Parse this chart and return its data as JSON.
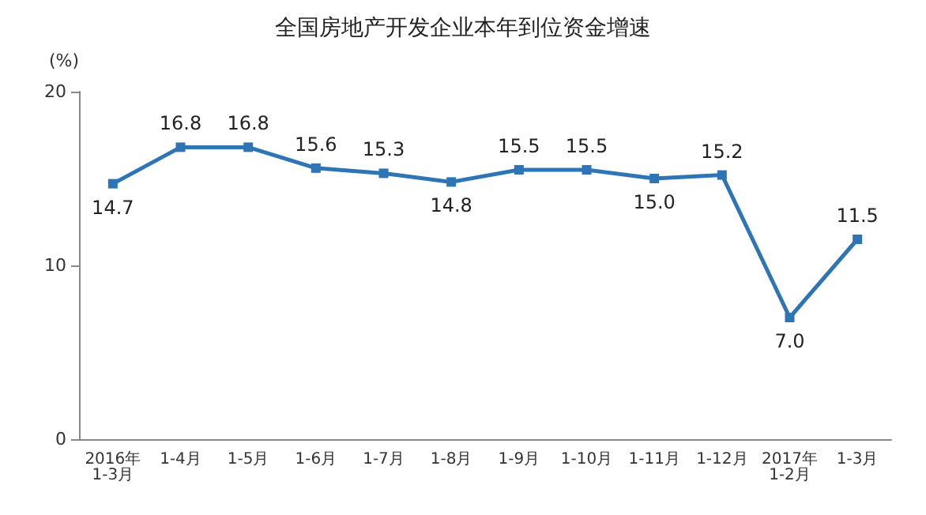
{
  "chart_data": {
    "type": "line",
    "title": "全国房地产开发企业本年到位资金增速",
    "ylabel": "(%)",
    "categories": [
      "2016年\n1-3月",
      "1-4月",
      "1-5月",
      "1-6月",
      "1-7月",
      "1-8月",
      "1-9月",
      "1-10月",
      "1-11月",
      "1-12月",
      "2017年\n1-2月",
      "1-3月"
    ],
    "series": [
      {
        "color": "#2e75b6",
        "values": [
          14.7,
          16.8,
          16.8,
          15.6,
          15.3,
          14.8,
          15.5,
          15.5,
          15.0,
          15.2,
          7.0,
          11.5
        ],
        "value_labels": [
          "14.7",
          "16.8",
          "16.8",
          "15.6",
          "15.3",
          "14.8",
          "15.5",
          "15.5",
          "15.0",
          "15.2",
          "7.0",
          "11.5"
        ]
      }
    ],
    "ylim": [
      0,
      20
    ],
    "yticks": [
      0,
      10,
      20
    ],
    "grid": false,
    "marker": "square",
    "line_style": "solid"
  }
}
